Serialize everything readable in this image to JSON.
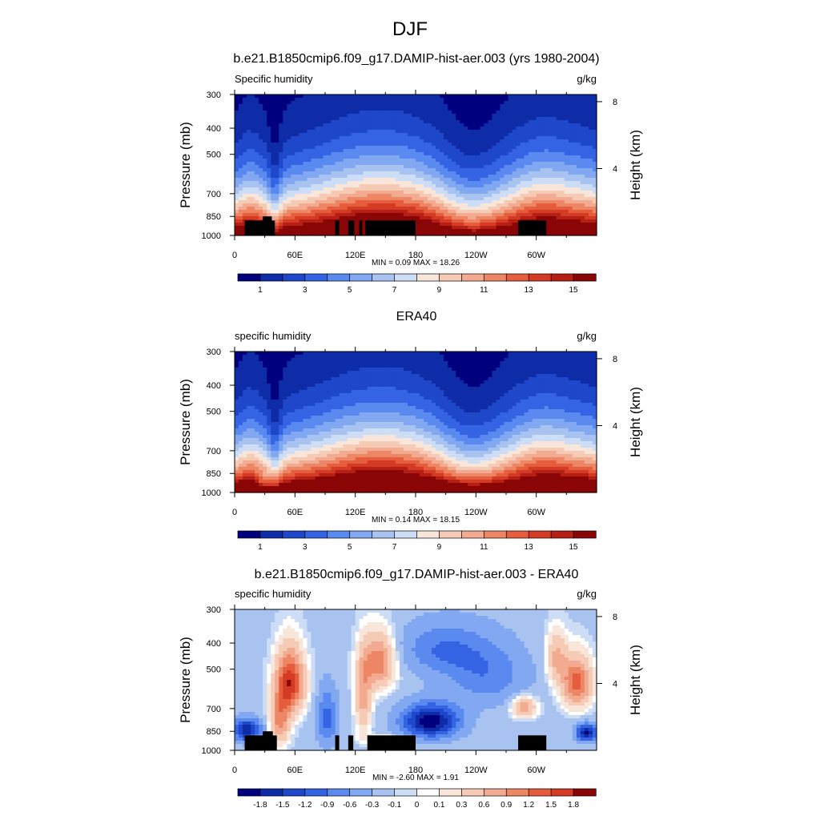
{
  "figure": {
    "title": "DJF"
  },
  "colors": {
    "full_field": [
      "#00007f",
      "#0f2ca8",
      "#1f47c9",
      "#3464e3",
      "#5a8af0",
      "#82a8f2",
      "#a9c3f1",
      "#cdddf5",
      "#f9e6db",
      "#f6cbb5",
      "#f2ab90",
      "#ec8665",
      "#e65d3e",
      "#d43b24",
      "#b51f14",
      "#8a0606"
    ],
    "difference": [
      "#00007f",
      "#0f2ca8",
      "#1f47c9",
      "#3464e3",
      "#5a8af0",
      "#82a8f2",
      "#a9c3f1",
      "#cdddf5",
      "#ffffff",
      "#f9e6db",
      "#f6cbb5",
      "#f2ab90",
      "#ec8665",
      "#e65d3e",
      "#d43b24",
      "#8a0606"
    ],
    "terrain": "#000000"
  },
  "chart_data": [
    {
      "type": "heatmap",
      "panel_title": "b.e21.B1850cmip6.f09_g17.DAMIP-hist-aer.003 (yrs 1980-2004)",
      "left_label": "Specific humidity",
      "right_label": "g/kg",
      "ylabel": "Pressure (mb)",
      "ylabel_right": "Height (km)",
      "x_ticks": [
        "0",
        "60E",
        "120E",
        "180",
        "120W",
        "60W"
      ],
      "x_tick_values": [
        0,
        60,
        120,
        180,
        240,
        300
      ],
      "xlim": [
        0,
        360
      ],
      "y_ticks": [
        "300",
        "400",
        "500",
        "700",
        "850",
        "1000"
      ],
      "y_tick_values": [
        300,
        400,
        500,
        700,
        850,
        1000
      ],
      "ylim": [
        1000,
        300
      ],
      "height_ticks": [
        "8",
        "4"
      ],
      "height_tick_values": [
        8,
        4
      ],
      "stats": "MIN =   0.09  MAX =  18.26",
      "min": 0.09,
      "max": 18.26,
      "colorbar_levels": [
        1,
        2,
        3,
        4,
        5,
        6,
        7,
        8,
        9,
        10,
        11,
        12,
        13,
        14,
        15
      ],
      "colorbar_labels": [
        "1",
        "3",
        "5",
        "7",
        "9",
        "11",
        "13",
        "15"
      ],
      "palette": "full_field",
      "field": "full",
      "terrain_blocks": [
        [
          10,
          40,
          1000,
          880
        ],
        [
          28,
          37,
          1000,
          850
        ],
        [
          100,
          104,
          1000,
          880
        ],
        [
          113,
          119,
          1000,
          880
        ],
        [
          124,
          127,
          1000,
          880
        ],
        [
          130,
          180,
          1000,
          880
        ],
        [
          282,
          310,
          1000,
          880
        ]
      ]
    },
    {
      "type": "heatmap",
      "panel_title": "ERA40",
      "left_label": "specific humidity",
      "right_label": "g/kg",
      "ylabel": "Pressure (mb)",
      "ylabel_right": "Height (km)",
      "x_ticks": [
        "0",
        "60E",
        "120E",
        "180",
        "120W",
        "60W"
      ],
      "x_tick_values": [
        0,
        60,
        120,
        180,
        240,
        300
      ],
      "xlim": [
        0,
        360
      ],
      "y_ticks": [
        "300",
        "400",
        "500",
        "700",
        "850",
        "1000"
      ],
      "y_tick_values": [
        300,
        400,
        500,
        700,
        850,
        1000
      ],
      "ylim": [
        1000,
        300
      ],
      "height_ticks": [
        "8",
        "4"
      ],
      "height_tick_values": [
        8,
        4
      ],
      "stats": "MIN =   0.14  MAX =  18.15",
      "min": 0.14,
      "max": 18.15,
      "colorbar_levels": [
        1,
        2,
        3,
        4,
        5,
        6,
        7,
        8,
        9,
        10,
        11,
        12,
        13,
        14,
        15
      ],
      "colorbar_labels": [
        "1",
        "3",
        "5",
        "7",
        "9",
        "11",
        "13",
        "15"
      ],
      "palette": "full_field",
      "field": "era",
      "terrain_blocks": []
    },
    {
      "type": "heatmap",
      "panel_title": "b.e21.B1850cmip6.f09_g17.DAMIP-hist-aer.003 - ERA40",
      "left_label": "specific humidity",
      "right_label": "g/kg",
      "ylabel": "Pressure (mb)",
      "ylabel_right": "Height (km)",
      "x_ticks": [
        "0",
        "60E",
        "120E",
        "180",
        "120W",
        "60W"
      ],
      "x_tick_values": [
        0,
        60,
        120,
        180,
        240,
        300
      ],
      "xlim": [
        0,
        360
      ],
      "y_ticks": [
        "300",
        "400",
        "500",
        "700",
        "850",
        "1000"
      ],
      "y_tick_values": [
        300,
        400,
        500,
        700,
        850,
        1000
      ],
      "ylim": [
        1000,
        300
      ],
      "height_ticks": [
        "8",
        "4"
      ],
      "height_tick_values": [
        8,
        4
      ],
      "stats": "MIN =  -2.60  MAX =   1.91",
      "min": -2.6,
      "max": 1.91,
      "colorbar_levels": [
        -1.8,
        -1.5,
        -1.2,
        -0.9,
        -0.6,
        -0.3,
        -0.1,
        0,
        0.1,
        0.3,
        0.6,
        0.9,
        1.2,
        1.5,
        1.8
      ],
      "colorbar_labels": [
        "-1.8",
        "-1.5",
        "-1.2",
        "-0.9",
        "-0.6",
        "-0.3",
        "-0.1",
        "0",
        "0.1",
        "0.3",
        "0.6",
        "0.9",
        "1.2",
        "1.5",
        "1.8"
      ],
      "palette": "difference",
      "field": "diff",
      "terrain_blocks": [
        [
          10,
          42,
          1000,
          880
        ],
        [
          28,
          38,
          1000,
          850
        ],
        [
          100,
          104,
          1000,
          880
        ],
        [
          113,
          118,
          1000,
          880
        ],
        [
          132,
          180,
          1000,
          880
        ],
        [
          282,
          310,
          1000,
          880
        ]
      ]
    }
  ]
}
